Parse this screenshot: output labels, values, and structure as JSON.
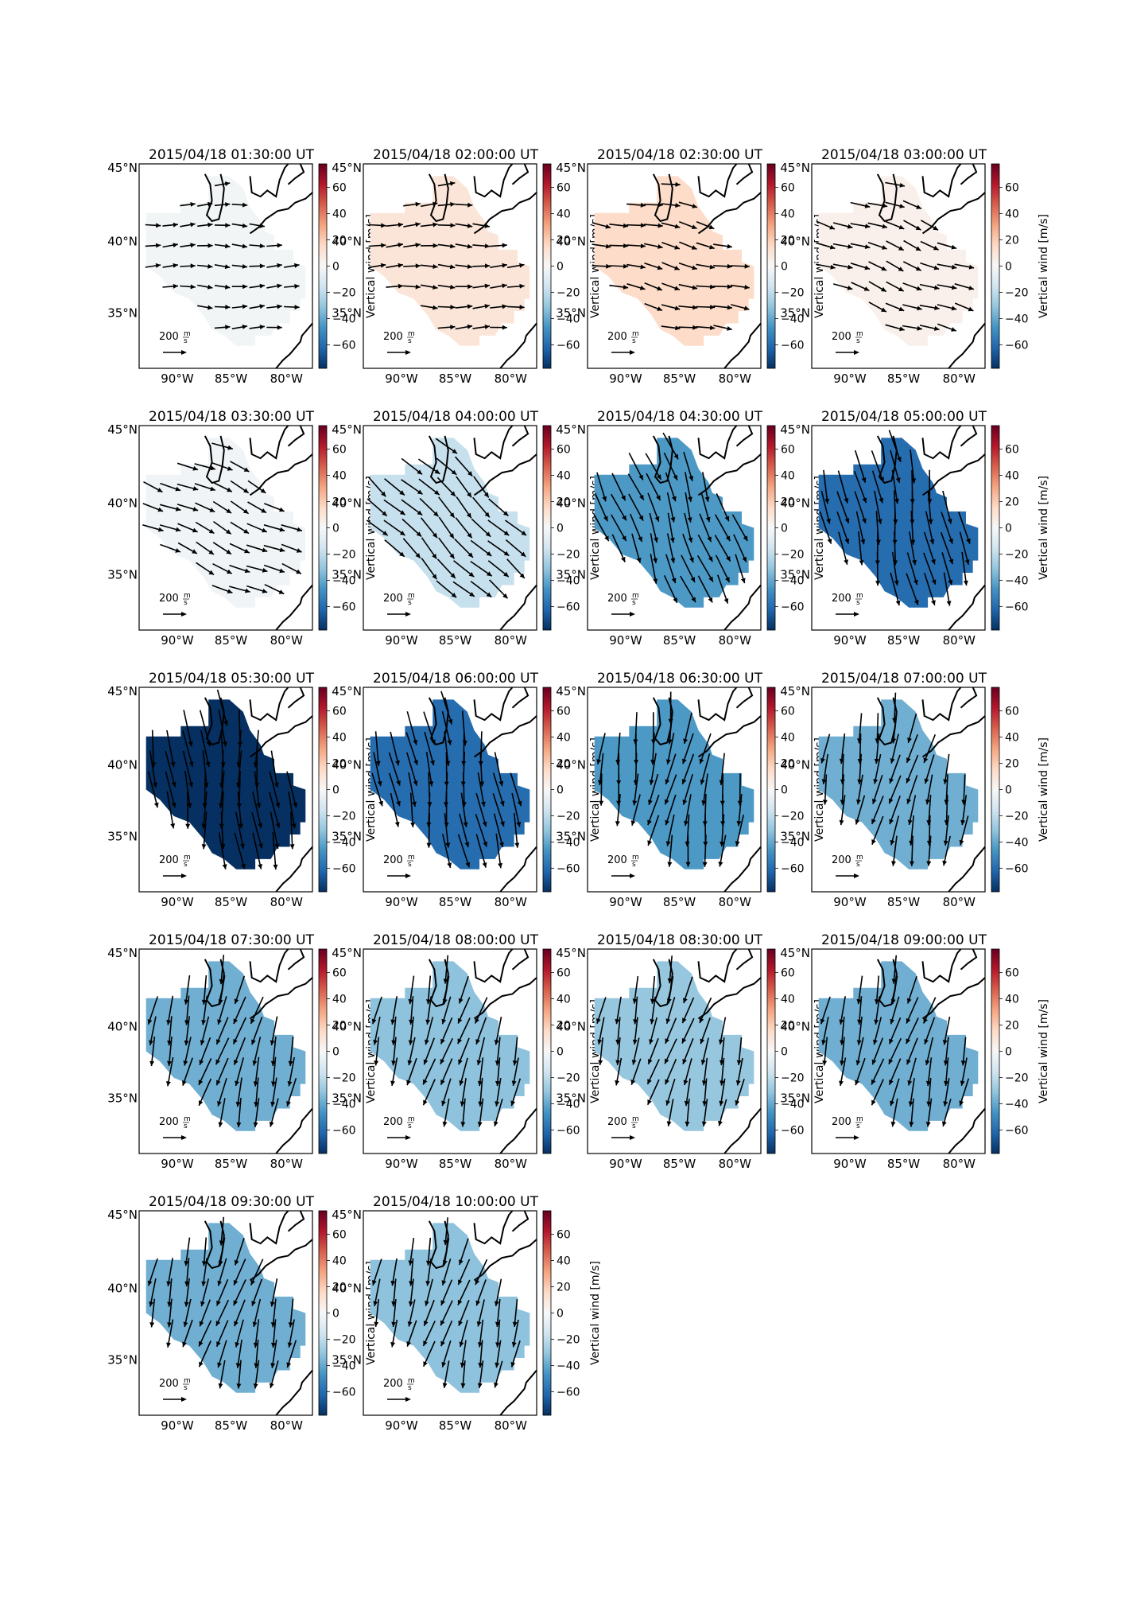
{
  "figure": {
    "panels": [
      {
        "title": "2015/04/18 01:30:00 UT",
        "value": -2,
        "dir": 0,
        "mag": 0.25
      },
      {
        "title": "2015/04/18 02:00:00 UT",
        "value": 10,
        "dir": 0,
        "mag": 0.35
      },
      {
        "title": "2015/04/18 02:30:00 UT",
        "value": 15,
        "dir": 12,
        "mag": 0.45
      },
      {
        "title": "2015/04/18 03:00:00 UT",
        "value": 4,
        "dir": 20,
        "mag": 0.5
      },
      {
        "title": "2015/04/18 03:30:00 UT",
        "value": -3,
        "dir": 25,
        "mag": 0.6
      },
      {
        "title": "2015/04/18 04:00:00 UT",
        "value": -18,
        "dir": 45,
        "mag": 0.85
      },
      {
        "title": "2015/04/18 04:30:00 UT",
        "value": -45,
        "dir": 70,
        "mag": 1.1
      },
      {
        "title": "2015/04/18 05:00:00 UT",
        "value": -60,
        "dir": 80,
        "mag": 1.3
      },
      {
        "title": "2015/04/18 05:30:00 UT",
        "value": -78,
        "dir": 85,
        "mag": 1.5
      },
      {
        "title": "2015/04/18 06:00:00 UT",
        "value": -60,
        "dir": 82,
        "mag": 1.35
      },
      {
        "title": "2015/04/18 06:30:00 UT",
        "value": -45,
        "dir": 100,
        "mag": 1.2
      },
      {
        "title": "2015/04/18 07:00:00 UT",
        "value": -38,
        "dir": 102,
        "mag": 1.1
      },
      {
        "title": "2015/04/18 07:30:00 UT",
        "value": -38,
        "dir": 105,
        "mag": 1.05
      },
      {
        "title": "2015/04/18 08:00:00 UT",
        "value": -32,
        "dir": 105,
        "mag": 1.0
      },
      {
        "title": "2015/04/18 08:30:00 UT",
        "value": -30,
        "dir": 105,
        "mag": 0.95
      },
      {
        "title": "2015/04/18 09:00:00 UT",
        "value": -38,
        "dir": 105,
        "mag": 1.0
      },
      {
        "title": "2015/04/18 09:30:00 UT",
        "value": -38,
        "dir": 105,
        "mag": 1.0
      },
      {
        "title": "2015/04/18 10:00:00 UT",
        "value": -32,
        "dir": 105,
        "mag": 0.95
      }
    ],
    "lat_ticks": [
      "45°N",
      "40°N",
      "35°N"
    ],
    "lon_ticks": [
      "90°W",
      "85°W",
      "80°W"
    ],
    "scale_label": "200",
    "scale_unit_num": "m",
    "scale_unit_den": "s",
    "colorbar": {
      "label": "Vertical wind [m/s]",
      "ticks": [
        "60",
        "40",
        "20",
        "0",
        "−20",
        "−40",
        "−60"
      ],
      "tick_values": [
        60,
        40,
        20,
        0,
        -20,
        -40,
        -60
      ],
      "range": [
        -78,
        78
      ],
      "cmap": [
        "#053061",
        "#2166ac",
        "#4393c3",
        "#92c5de",
        "#d1e5f0",
        "#f7f7f7",
        "#fddbc7",
        "#f4a582",
        "#d6604d",
        "#b2182b",
        "#67001f"
      ]
    }
  }
}
